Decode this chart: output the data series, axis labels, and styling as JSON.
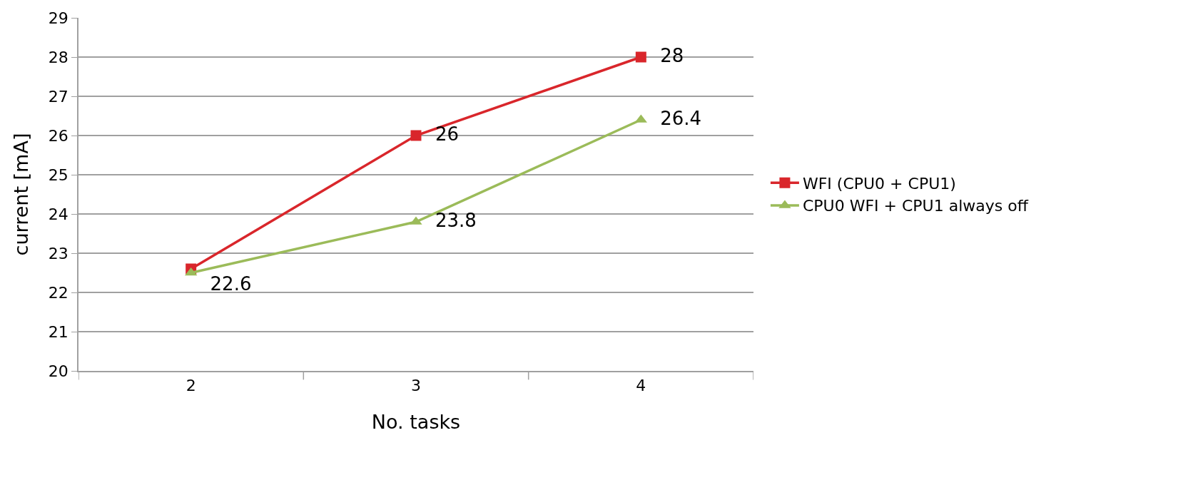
{
  "chart_data": {
    "type": "line",
    "xlabel": "No. tasks",
    "ylabel": "current [mA]",
    "categories": [
      "2",
      "3",
      "4"
    ],
    "series": [
      {
        "name": "WFI (CPU0 + CPU1)",
        "color": "#d9262b",
        "marker": "square",
        "values": [
          22.6,
          26,
          28
        ],
        "value_labels": [
          "22.6",
          "26",
          "28"
        ]
      },
      {
        "name": "CPU0 WFI + CPU1 always off",
        "color": "#9bbb59",
        "marker": "triangle",
        "values": [
          22.5,
          23.8,
          26.4
        ],
        "value_labels": [
          null,
          "23.8",
          "26.4"
        ]
      }
    ],
    "ylim": [
      20,
      29
    ],
    "yticks": [
      20,
      21,
      22,
      23,
      24,
      25,
      26,
      27,
      28,
      29
    ],
    "grid": "y",
    "legend": "right",
    "line_style": "solid"
  }
}
